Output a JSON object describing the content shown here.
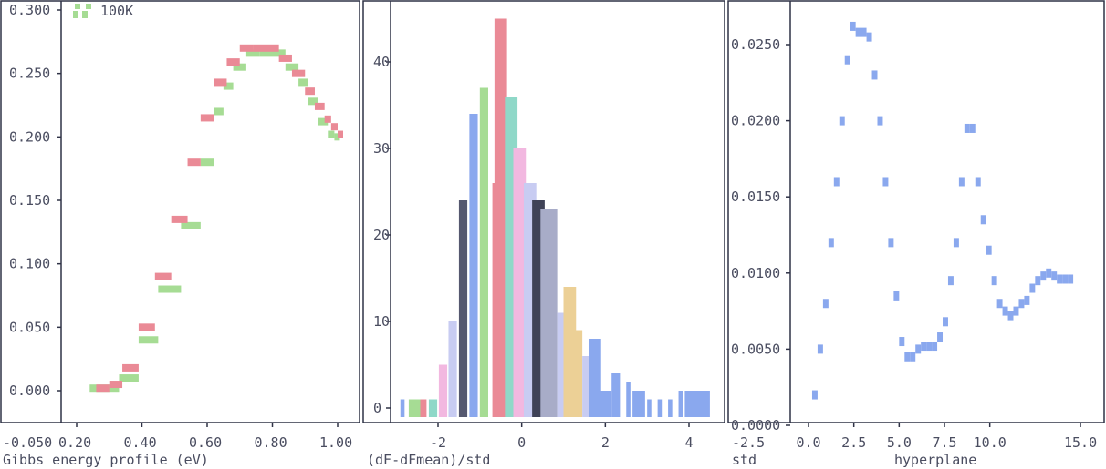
{
  "chart_data": [
    {
      "type": "line",
      "style": "step-pixel",
      "xlabel": "Gibbs energy profile (eV)",
      "ylabel": "",
      "xlim": [
        0.2,
        1.05
      ],
      "ylim": [
        -0.05,
        0.31
      ],
      "x_ticks": [
        "0.20",
        "0.40",
        "0.60",
        "0.80",
        "1.00"
      ],
      "y_ticks": [
        "-0.050",
        "0.000",
        "0.050",
        "0.100",
        "0.150",
        "0.200",
        "0.250",
        "0.300"
      ],
      "legend": {
        "position": "top-left",
        "entries": [
          {
            "label": "100K",
            "color": "#a6dc94"
          }
        ]
      },
      "series": [
        {
          "name": "100K",
          "color": "#a6dc94",
          "x": [
            0.24,
            0.28,
            0.33,
            0.39,
            0.45,
            0.52,
            0.58,
            0.62,
            0.65,
            0.68,
            0.72,
            0.76,
            0.8,
            0.84,
            0.88,
            0.91,
            0.94,
            0.97,
            0.99
          ],
          "y": [
            0.002,
            0.002,
            0.01,
            0.04,
            0.08,
            0.13,
            0.18,
            0.22,
            0.24,
            0.255,
            0.266,
            0.266,
            0.266,
            0.255,
            0.243,
            0.228,
            0.212,
            0.202,
            0.2
          ]
        },
        {
          "name": "",
          "color": "#ea8a96",
          "x": [
            0.26,
            0.3,
            0.34,
            0.39,
            0.44,
            0.49,
            0.54,
            0.58,
            0.62,
            0.66,
            0.7,
            0.74,
            0.78,
            0.82,
            0.86,
            0.9,
            0.93,
            0.96,
            0.98,
            1.0
          ],
          "y": [
            0.002,
            0.005,
            0.018,
            0.05,
            0.09,
            0.135,
            0.18,
            0.215,
            0.243,
            0.259,
            0.27,
            0.27,
            0.27,
            0.262,
            0.25,
            0.236,
            0.224,
            0.214,
            0.208,
            0.202
          ]
        }
      ]
    },
    {
      "type": "bar",
      "style": "histogram-overlay",
      "xlabel": "(dF-dFmean)/std",
      "ylabel": "",
      "xlim": [
        -3.2,
        4.8
      ],
      "ylim": [
        -2,
        45
      ],
      "x_ticks": [
        "-2",
        "0",
        "2",
        "4"
      ],
      "y_ticks": [
        "0",
        "10",
        "20",
        "30",
        "40"
      ],
      "bars": [
        {
          "x": -2.85,
          "w": 0.1,
          "v": 1,
          "color": "#8aa8ee"
        },
        {
          "x": -2.55,
          "w": 0.3,
          "v": 1,
          "color": "#a6dc94"
        },
        {
          "x": -2.35,
          "w": 0.15,
          "v": 1,
          "color": "#ea8a96"
        },
        {
          "x": -2.12,
          "w": 0.2,
          "v": 1,
          "color": "#8fd8c8"
        },
        {
          "x": -1.88,
          "w": 0.2,
          "v": 5,
          "color": "#f2b8e0"
        },
        {
          "x": -1.65,
          "w": 0.2,
          "v": 10,
          "color": "#c8ccf2"
        },
        {
          "x": -1.4,
          "w": 0.2,
          "v": 24,
          "color": "#55586f"
        },
        {
          "x": -1.15,
          "w": 0.2,
          "v": 34,
          "color": "#8aa8ee"
        },
        {
          "x": -0.9,
          "w": 0.2,
          "v": 37,
          "color": "#a6dc94"
        },
        {
          "x": -0.65,
          "w": 0.1,
          "v": 26,
          "color": "#ea8a96"
        },
        {
          "x": -0.5,
          "w": 0.3,
          "v": 45,
          "color": "#ea8a96"
        },
        {
          "x": -0.25,
          "w": 0.3,
          "v": 36,
          "color": "#8fd8c8"
        },
        {
          "x": -0.05,
          "w": 0.3,
          "v": 30,
          "color": "#f2b8e0"
        },
        {
          "x": 0.2,
          "w": 0.3,
          "v": 26,
          "color": "#c8ccf2"
        },
        {
          "x": 0.4,
          "w": 0.3,
          "v": 24,
          "color": "#3f4257"
        },
        {
          "x": 0.65,
          "w": 0.4,
          "v": 23,
          "color": "#a8acc8"
        },
        {
          "x": 0.95,
          "w": 0.2,
          "v": 11,
          "color": "#c8ccf2"
        },
        {
          "x": 1.15,
          "w": 0.3,
          "v": 14,
          "color": "#ecd096"
        },
        {
          "x": 1.35,
          "w": 0.2,
          "v": 9,
          "color": "#ecd096"
        },
        {
          "x": 1.55,
          "w": 0.2,
          "v": 6,
          "color": "#c8ccf2"
        },
        {
          "x": 1.75,
          "w": 0.3,
          "v": 8,
          "color": "#8aa8ee"
        },
        {
          "x": 2.0,
          "w": 0.3,
          "v": 2,
          "color": "#8aa8ee"
        },
        {
          "x": 2.25,
          "w": 0.2,
          "v": 4,
          "color": "#8aa8ee"
        },
        {
          "x": 2.55,
          "w": 0.1,
          "v": 3,
          "color": "#8aa8ee"
        },
        {
          "x": 2.8,
          "w": 0.3,
          "v": 2,
          "color": "#8aa8ee"
        },
        {
          "x": 3.05,
          "w": 0.1,
          "v": 1,
          "color": "#8aa8ee"
        },
        {
          "x": 3.3,
          "w": 0.1,
          "v": 1,
          "color": "#8aa8ee"
        },
        {
          "x": 3.55,
          "w": 0.1,
          "v": 1,
          "color": "#8aa8ee"
        },
        {
          "x": 3.8,
          "w": 0.1,
          "v": 2,
          "color": "#8aa8ee"
        },
        {
          "x": 4.2,
          "w": 0.6,
          "v": 2,
          "color": "#8aa8ee"
        }
      ]
    },
    {
      "type": "line",
      "style": "step-pixel",
      "xlabel": "hyperplane",
      "ylabel": "std",
      "xlim": [
        -0.8,
        16.0
      ],
      "ylim": [
        0.0,
        0.027
      ],
      "x_ticks": [
        "-2.5",
        "0.0",
        "2.5",
        "5.0",
        "7.5",
        "10.0",
        "15.0"
      ],
      "y_ticks": [
        "0.0000",
        "0.0050",
        "0.0100",
        "0.0150",
        "0.0200",
        "0.0250"
      ],
      "series": [
        {
          "name": "",
          "color": "#8aa8ee",
          "x": [
            0.2,
            0.5,
            0.8,
            1.1,
            1.4,
            1.7,
            2.0,
            2.3,
            2.6,
            2.9,
            3.2,
            3.5,
            3.8,
            4.1,
            4.4,
            4.7,
            5.0,
            5.3,
            5.6,
            5.9,
            6.2,
            6.5,
            6.8,
            7.1,
            7.4,
            7.7,
            8.0,
            8.3,
            8.6,
            8.9,
            9.2,
            9.5,
            9.8,
            10.1,
            10.4,
            10.7,
            11.0,
            11.3,
            11.6,
            11.9,
            12.2,
            12.5,
            12.8,
            13.1,
            13.4,
            13.7,
            14.0,
            14.3
          ],
          "y": [
            0.002,
            0.005,
            0.008,
            0.012,
            0.016,
            0.02,
            0.024,
            0.0262,
            0.0258,
            0.0258,
            0.0255,
            0.023,
            0.02,
            0.016,
            0.012,
            0.0085,
            0.0055,
            0.0045,
            0.0045,
            0.005,
            0.0052,
            0.0052,
            0.0052,
            0.0058,
            0.0068,
            0.0095,
            0.012,
            0.016,
            0.0195,
            0.0195,
            0.016,
            0.0135,
            0.0115,
            0.0095,
            0.008,
            0.0075,
            0.0072,
            0.0075,
            0.008,
            0.0082,
            0.009,
            0.0095,
            0.0098,
            0.01,
            0.0098,
            0.0096,
            0.0096,
            0.0096
          ]
        }
      ]
    }
  ]
}
